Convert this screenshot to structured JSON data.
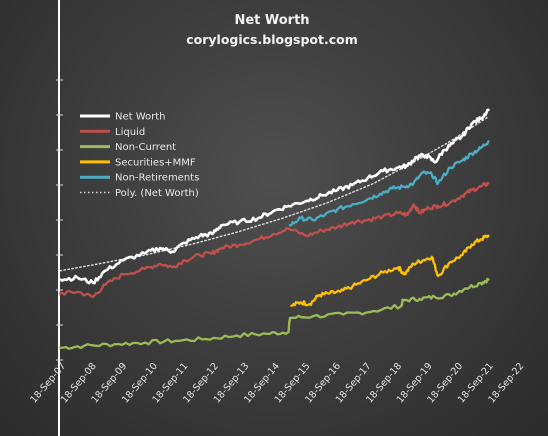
{
  "chart_data": {
    "type": "line",
    "title": "Net Worth",
    "subtitle": "corylogics.blogspot.com",
    "x_tick_labels": [
      "18-Sep-07",
      "18-Sep-08",
      "18-Sep-09",
      "18-Sep-10",
      "18-Sep-11",
      "18-Sep-12",
      "18-Sep-13",
      "18-Sep-14",
      "18-Sep-15",
      "18-Sep-16",
      "18-Sep-17",
      "18-Sep-18",
      "18-Sep-19",
      "18-Sep-20",
      "18-Sep-21",
      "18-Sep-22"
    ],
    "xlim": [
      2007.72,
      2022.72
    ],
    "ylim": [
      0,
      8
    ],
    "y_tick_values": [
      0,
      1,
      2,
      3,
      4,
      5,
      6,
      7,
      8
    ],
    "legend_position": "top-left",
    "series": [
      {
        "name": "Net Worth",
        "color": "#ffffff",
        "style": "solid",
        "x": [
          2007.72,
          2008.3,
          2008.8,
          2009.2,
          2009.8,
          2010.5,
          2011.0,
          2011.4,
          2011.8,
          2012.3,
          2012.7,
          2013.0,
          2013.6,
          2014.2,
          2014.7,
          2015.2,
          2015.8,
          2016.3,
          2016.8,
          2017.3,
          2017.8,
          2018.3,
          2018.8,
          2019.1,
          2019.4,
          2019.7,
          2020.0,
          2020.3,
          2020.6,
          2020.9,
          2021.2,
          2021.5,
          2021.75
        ],
        "y": [
          2.3,
          2.35,
          2.2,
          2.55,
          2.85,
          3.05,
          3.2,
          3.1,
          3.35,
          3.55,
          3.6,
          3.85,
          3.95,
          4.05,
          4.25,
          4.4,
          4.55,
          4.7,
          4.85,
          5.0,
          5.2,
          5.4,
          5.5,
          5.55,
          5.8,
          5.85,
          5.65,
          6.0,
          6.2,
          6.4,
          6.75,
          6.9,
          7.15
        ]
      },
      {
        "name": "Liquid",
        "color": "#c0504d",
        "style": "solid",
        "x": [
          2007.72,
          2008.3,
          2008.8,
          2009.2,
          2009.8,
          2010.5,
          2011.0,
          2011.4,
          2011.8,
          2012.3,
          2012.7,
          2013.0,
          2013.6,
          2014.2,
          2014.7,
          2015.2,
          2015.8,
          2016.3,
          2016.8,
          2017.3,
          2017.8,
          2018.3,
          2018.8,
          2019.1,
          2019.3,
          2019.5,
          2019.8,
          2020.1,
          2020.5,
          2020.9,
          2021.2,
          2021.5,
          2021.75
        ],
        "y": [
          1.9,
          1.95,
          1.8,
          2.15,
          2.45,
          2.6,
          2.75,
          2.65,
          2.85,
          3.0,
          3.05,
          3.2,
          3.3,
          3.45,
          3.6,
          3.75,
          3.55,
          3.7,
          3.8,
          3.95,
          4.0,
          4.1,
          4.2,
          4.15,
          4.45,
          4.2,
          4.35,
          4.4,
          4.5,
          4.7,
          4.85,
          4.95,
          5.05
        ]
      },
      {
        "name": "Non-Current",
        "color": "#9bbb59",
        "style": "solid",
        "x": [
          2007.72,
          2008.5,
          2009.5,
          2010.5,
          2011.5,
          2012.5,
          2013.5,
          2014.5,
          2015.2,
          2015.25,
          2016.0,
          2017.0,
          2018.0,
          2018.9,
          2018.95,
          2019.5,
          2020.0,
          2020.5,
          2021.0,
          2021.5,
          2021.75
        ],
        "y": [
          0.35,
          0.4,
          0.45,
          0.5,
          0.55,
          0.6,
          0.7,
          0.75,
          0.8,
          1.2,
          1.25,
          1.3,
          1.4,
          1.55,
          1.7,
          1.75,
          1.8,
          1.85,
          2.05,
          2.2,
          2.3
        ]
      },
      {
        "name": "Securities+MMF",
        "color": "#ffc000",
        "style": "solid",
        "x": [
          2015.3,
          2015.6,
          2015.9,
          2016.2,
          2016.5,
          2016.9,
          2017.3,
          2017.8,
          2018.3,
          2018.8,
          2019.0,
          2019.3,
          2019.6,
          2019.9,
          2020.1,
          2020.5,
          2020.9,
          2021.2,
          2021.5,
          2021.75
        ],
        "y": [
          1.55,
          1.65,
          1.6,
          1.85,
          1.9,
          1.95,
          2.1,
          2.3,
          2.5,
          2.65,
          2.45,
          2.75,
          2.85,
          2.95,
          2.4,
          2.8,
          3.0,
          3.3,
          3.45,
          3.55
        ]
      },
      {
        "name": "Non-Retirements",
        "color": "#4bacc6",
        "style": "solid",
        "x": [
          2015.25,
          2015.6,
          2016.0,
          2016.4,
          2016.8,
          2017.3,
          2017.8,
          2018.2,
          2018.6,
          2019.0,
          2019.3,
          2019.6,
          2019.9,
          2020.1,
          2020.5,
          2020.9,
          2021.2,
          2021.5,
          2021.75
        ],
        "y": [
          3.85,
          4.05,
          4.0,
          4.15,
          4.3,
          4.45,
          4.6,
          4.75,
          4.9,
          4.95,
          5.05,
          5.35,
          5.3,
          5.05,
          5.5,
          5.7,
          5.9,
          6.05,
          6.25
        ]
      },
      {
        "name": "Poly. (Net Worth)",
        "color": "#e0e0e0",
        "style": "dotted",
        "x": [
          2007.72,
          2009.0,
          2010.5,
          2012.0,
          2013.5,
          2015.0,
          2016.5,
          2018.0,
          2019.5,
          2020.5,
          2021.75
        ],
        "y": [
          2.55,
          2.75,
          3.0,
          3.3,
          3.65,
          4.05,
          4.5,
          5.05,
          5.75,
          6.25,
          6.95
        ]
      }
    ]
  }
}
